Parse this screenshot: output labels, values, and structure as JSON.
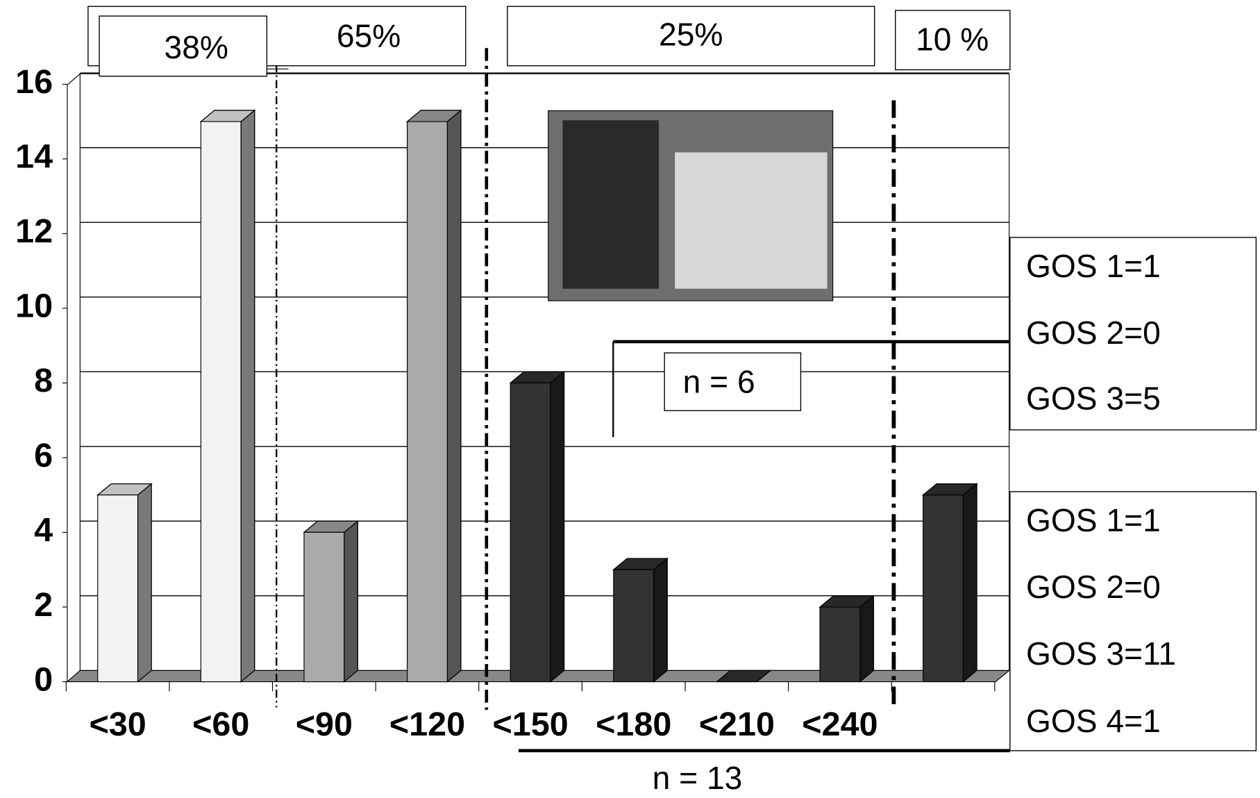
{
  "chart_data": {
    "type": "bar",
    "categories": [
      "<30",
      "<60",
      "<90",
      "<120",
      "<150",
      "<180",
      "<210",
      "<240",
      null
    ],
    "values": [
      5,
      15,
      4,
      15,
      8,
      3,
      0,
      2,
      5
    ],
    "colors": [
      "#f2f2f2",
      "#f2f2f2",
      "#aaaaaa",
      "#aaaaaa",
      "#333333",
      "#333333",
      "#333333",
      "#333333",
      "#333333"
    ],
    "ylim": [
      0,
      16
    ],
    "yticks": [
      0,
      2,
      4,
      6,
      8,
      10,
      12,
      14,
      16
    ],
    "grid": true,
    "group_labels": [
      "38%",
      "65%",
      "25%",
      "10 %"
    ],
    "n_labels": [
      "n = 6",
      "n = 13"
    ],
    "gos_boxes": [
      [
        "GOS 1=1",
        "GOS 2=0",
        "GOS 3=5"
      ],
      [
        "GOS 1=1",
        "GOS 2=0",
        "GOS 3=11",
        "GOS 4=1"
      ]
    ]
  }
}
